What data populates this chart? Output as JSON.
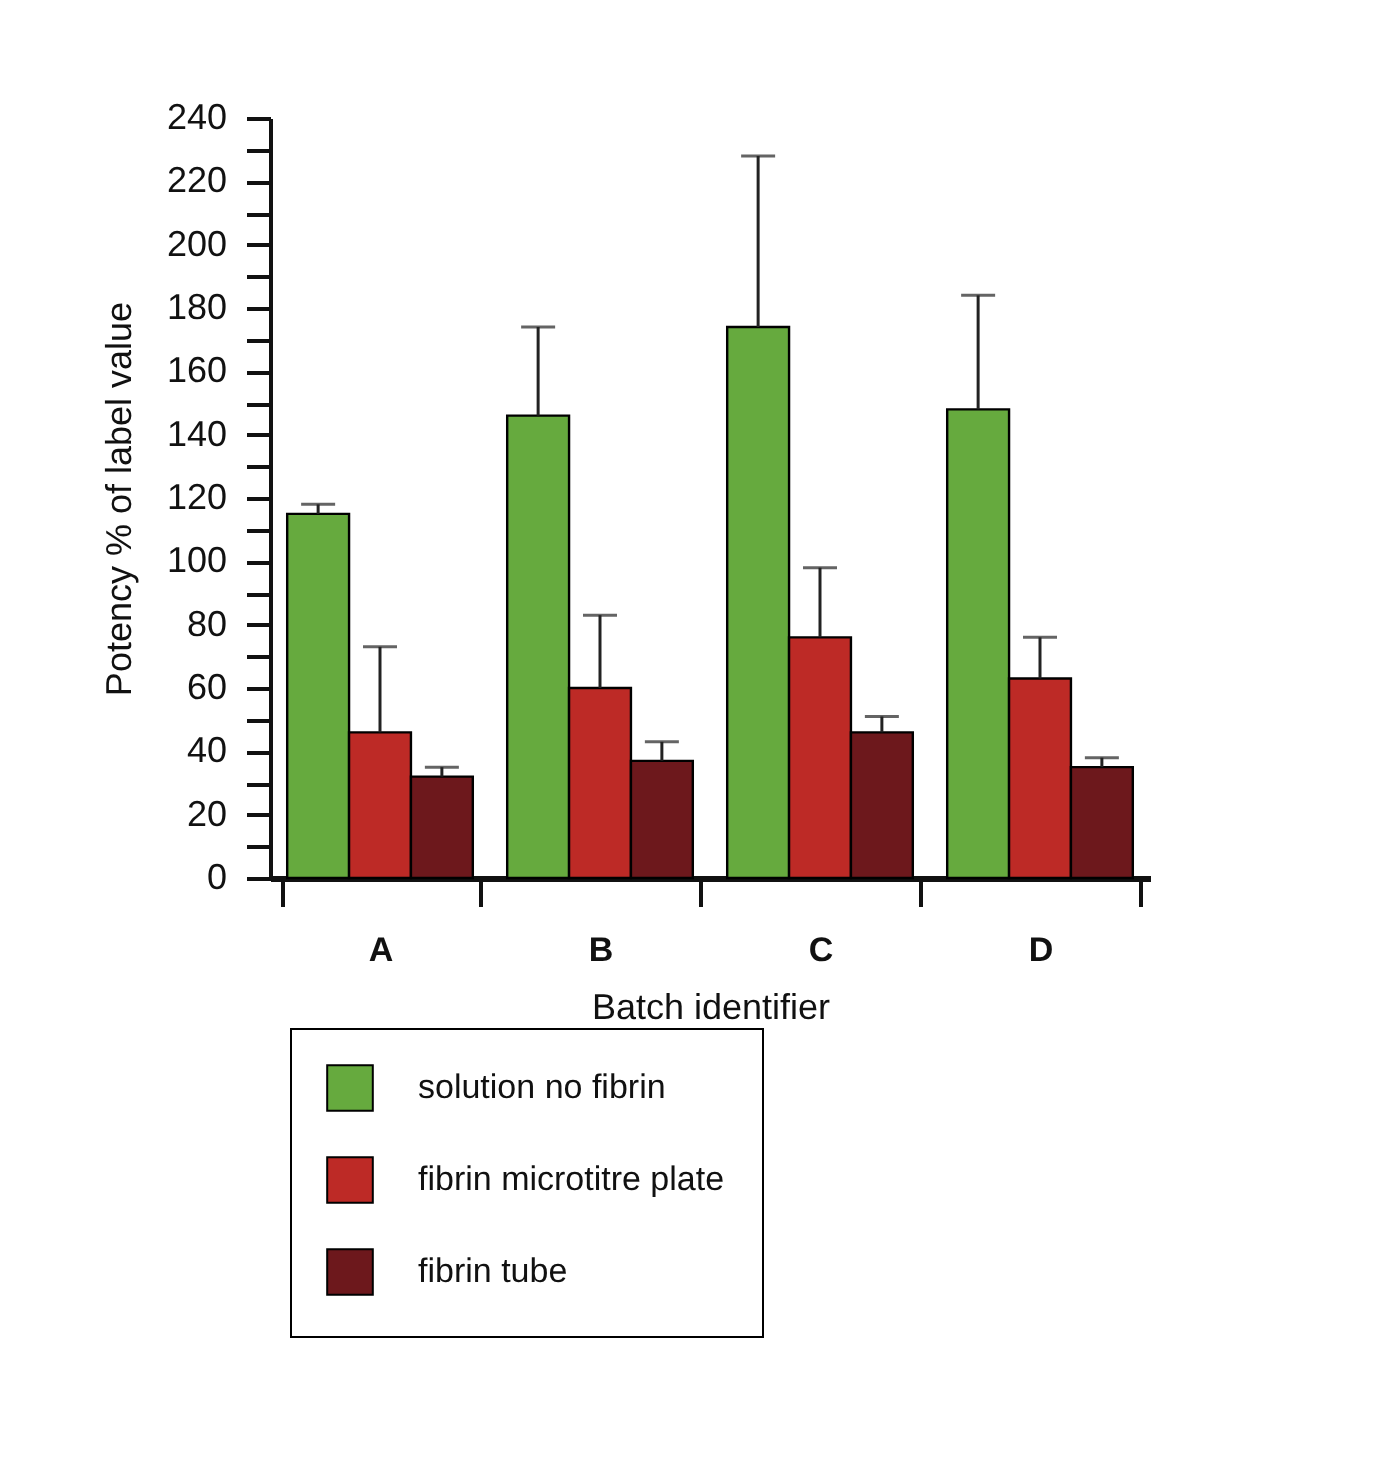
{
  "chart_data": {
    "type": "bar",
    "xlabel": "Batch identifier",
    "ylabel": "Potency % of label value",
    "categories": [
      "A",
      "B",
      "C",
      "D"
    ],
    "series": [
      {
        "name": "solution no fibrin",
        "color": "#66aa3e",
        "values": [
          115,
          146,
          174,
          148
        ],
        "errors": [
          [
            115,
            118
          ],
          [
            146,
            174
          ],
          [
            174,
            228
          ],
          [
            148,
            184
          ]
        ]
      },
      {
        "name": "fibrin microtitre plate",
        "color": "#bd2a26",
        "values": [
          46,
          60,
          76,
          63
        ],
        "errors": [
          [
            46,
            73
          ],
          [
            60,
            83
          ],
          [
            76,
            98
          ],
          [
            63,
            76
          ]
        ]
      },
      {
        "name": "fibrin tube",
        "color": "#6d181c",
        "values": [
          32,
          37,
          46,
          35
        ],
        "errors": [
          [
            32,
            35
          ],
          [
            37,
            43
          ],
          [
            46,
            51
          ],
          [
            35,
            38
          ]
        ]
      }
    ],
    "ylim": [
      0,
      240
    ],
    "yticks": [
      0,
      {
        "value": 10,
        "label": null
      },
      20,
      {
        "value": 30,
        "label": null
      },
      40,
      {
        "value": 50,
        "label": null
      },
      60,
      {
        "value": 70,
        "label": null
      },
      80,
      {
        "value": 90,
        "label": null
      },
      100,
      {
        "value": 110,
        "label": null
      },
      120,
      {
        "value": 130,
        "label": null
      },
      140,
      {
        "value": 150,
        "label": null
      },
      160,
      {
        "value": 170,
        "label": null
      },
      180,
      {
        "value": 190,
        "label": null
      },
      200,
      {
        "value": 210,
        "label": null
      },
      220,
      {
        "value": 230,
        "label": null
      },
      240
    ],
    "grid": false,
    "legend": "bottom"
  }
}
